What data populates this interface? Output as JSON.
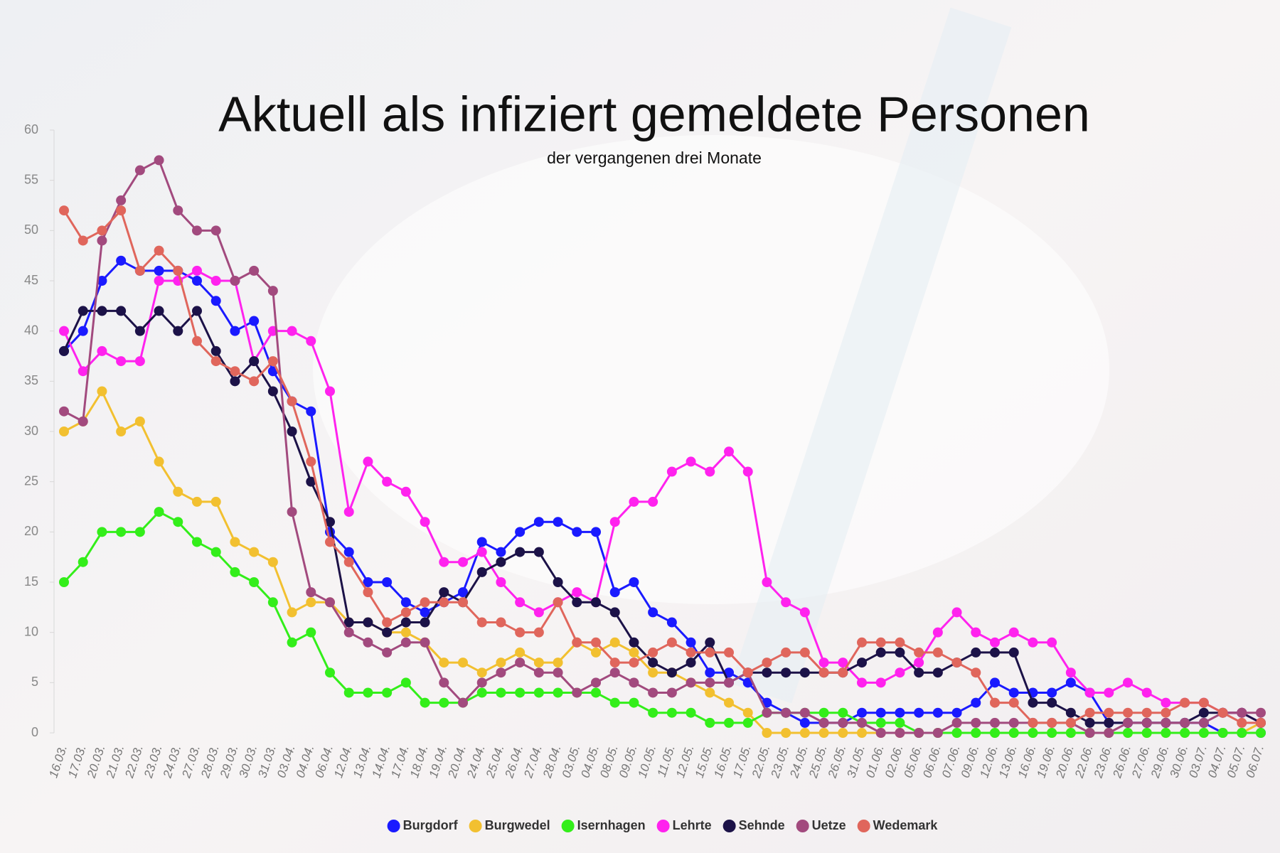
{
  "chart_data": {
    "type": "line",
    "title": "Aktuell als infiziert gemeldete Personen",
    "subtitle": "der vergangenen drei Monate",
    "categories": [
      "16.03.",
      "17.03.",
      "20.03.",
      "21.03.",
      "22.03.",
      "23.03.",
      "24.03.",
      "27.03.",
      "28.03.",
      "29.03.",
      "30.03.",
      "31.03.",
      "03.04.",
      "04.04.",
      "06.04.",
      "12.04.",
      "13.04.",
      "14.04.",
      "17.04.",
      "18.04.",
      "19.04.",
      "20.04.",
      "24.04.",
      "25.04.",
      "26.04.",
      "27.04.",
      "28.04.",
      "03.05.",
      "04.05.",
      "08.05.",
      "09.05.",
      "10.05.",
      "11.05.",
      "12.05.",
      "15.05.",
      "16.05.",
      "17.05.",
      "22.05.",
      "23.05.",
      "24.05.",
      "25.05.",
      "26.05.",
      "31.05.",
      "01.06.",
      "02.06.",
      "05.06.",
      "06.06.",
      "07.06.",
      "09.06.",
      "12.06.",
      "13.06.",
      "16.06.",
      "19.06.",
      "20.06.",
      "22.06.",
      "23.06.",
      "26.06.",
      "27.06.",
      "29.06.",
      "30.06.",
      "03.07.",
      "04.07.",
      "05.07.",
      "06.07."
    ],
    "series": [
      {
        "name": "Burgdorf",
        "color": "#1a1aff",
        "values": [
          38,
          40,
          45,
          47,
          46,
          46,
          46,
          45,
          43,
          40,
          41,
          36,
          33,
          32,
          20,
          18,
          15,
          15,
          13,
          12,
          13,
          14,
          19,
          18,
          20,
          21,
          21,
          20,
          20,
          14,
          15,
          12,
          11,
          9,
          6,
          6,
          5,
          3,
          2,
          1,
          1,
          1,
          2,
          2,
          2,
          2,
          2,
          2,
          3,
          5,
          4,
          4,
          4,
          5,
          4,
          1,
          1,
          1,
          1,
          1,
          1,
          0,
          0,
          0
        ]
      },
      {
        "name": "Burgwedel",
        "color": "#f2c030",
        "values": [
          30,
          31,
          34,
          30,
          31,
          27,
          24,
          23,
          23,
          19,
          18,
          17,
          12,
          13,
          13,
          11,
          11,
          10,
          10,
          9,
          7,
          7,
          6,
          7,
          8,
          7,
          7,
          9,
          8,
          9,
          8,
          6,
          6,
          5,
          4,
          3,
          2,
          0,
          0,
          0,
          0,
          0,
          0,
          0,
          0,
          0,
          0,
          0,
          0,
          0,
          0,
          0,
          0,
          0,
          0,
          0,
          0,
          0,
          0,
          0,
          0,
          0,
          0,
          1
        ]
      },
      {
        "name": "Isernhagen",
        "color": "#33ee1a",
        "values": [
          15,
          17,
          20,
          20,
          20,
          22,
          21,
          19,
          18,
          16,
          15,
          13,
          9,
          10,
          6,
          4,
          4,
          4,
          5,
          3,
          3,
          3,
          4,
          4,
          4,
          4,
          4,
          4,
          4,
          3,
          3,
          2,
          2,
          2,
          1,
          1,
          1,
          2,
          2,
          2,
          2,
          2,
          1,
          1,
          1,
          0,
          0,
          0,
          0,
          0,
          0,
          0,
          0,
          0,
          0,
          0,
          0,
          0,
          0,
          0,
          0,
          0,
          0,
          0
        ]
      },
      {
        "name": "Lehrte",
        "color": "#ff22ee",
        "values": [
          40,
          36,
          38,
          37,
          37,
          45,
          45,
          46,
          45,
          45,
          37,
          40,
          40,
          39,
          34,
          22,
          27,
          25,
          24,
          21,
          17,
          17,
          18,
          15,
          13,
          12,
          13,
          14,
          13,
          21,
          23,
          23,
          26,
          27,
          26,
          28,
          26,
          15,
          13,
          12,
          7,
          7,
          5,
          5,
          6,
          7,
          10,
          12,
          10,
          9,
          10,
          9,
          9,
          6,
          4,
          4,
          5,
          4,
          3,
          3,
          3,
          2,
          2,
          1
        ]
      },
      {
        "name": "Sehnde",
        "color": "#1c1248",
        "values": [
          38,
          42,
          42,
          42,
          40,
          42,
          40,
          42,
          38,
          35,
          37,
          34,
          30,
          25,
          21,
          11,
          11,
          10,
          11,
          11,
          14,
          13,
          16,
          17,
          18,
          18,
          15,
          13,
          13,
          12,
          9,
          7,
          6,
          7,
          9,
          5,
          6,
          6,
          6,
          6,
          6,
          6,
          7,
          8,
          8,
          6,
          6,
          7,
          8,
          8,
          8,
          3,
          3,
          2,
          1,
          1,
          1,
          1,
          1,
          1,
          2,
          2,
          2,
          1
        ]
      },
      {
        "name": "Uetze",
        "color": "#a24a7e",
        "values": [
          32,
          31,
          49,
          53,
          56,
          57,
          52,
          50,
          50,
          45,
          46,
          44,
          22,
          14,
          13,
          10,
          9,
          8,
          9,
          9,
          5,
          3,
          5,
          6,
          7,
          6,
          6,
          4,
          5,
          6,
          5,
          4,
          4,
          5,
          5,
          5,
          6,
          2,
          2,
          2,
          1,
          1,
          1,
          0,
          0,
          0,
          0,
          1,
          1,
          1,
          1,
          1,
          1,
          1,
          0,
          0,
          1,
          1,
          1,
          1,
          1,
          2,
          2,
          2
        ]
      },
      {
        "name": "Wedemark",
        "color": "#e0665c",
        "values": [
          52,
          49,
          50,
          52,
          46,
          48,
          46,
          39,
          37,
          36,
          35,
          37,
          33,
          27,
          19,
          17,
          14,
          11,
          12,
          13,
          13,
          13,
          11,
          11,
          10,
          10,
          13,
          9,
          9,
          7,
          7,
          8,
          9,
          8,
          8,
          8,
          6,
          7,
          8,
          8,
          6,
          6,
          9,
          9,
          9,
          8,
          8,
          7,
          6,
          3,
          3,
          1,
          1,
          1,
          2,
          2,
          2,
          2,
          2,
          3,
          3,
          2,
          1,
          1
        ]
      }
    ],
    "ylim": [
      0,
      60
    ],
    "yticks": [
      0,
      5,
      10,
      15,
      20,
      25,
      30,
      35,
      40,
      45,
      50,
      55,
      60
    ],
    "grid": false
  }
}
